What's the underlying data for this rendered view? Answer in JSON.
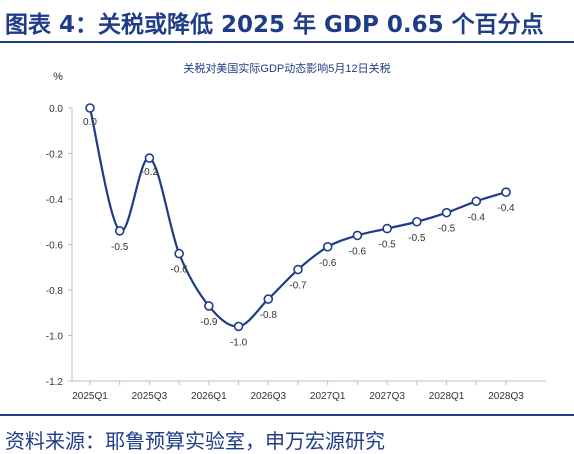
{
  "header": {
    "title": "图表 4：关税或降低 2025 年 GDP 0.65 个百分点"
  },
  "footer": {
    "source": "资料来源：耶鲁预算实验室，申万宏源研究"
  },
  "colors": {
    "brand": "#1f3c88",
    "line": "#1f3c88",
    "axis": "#bfbfbf"
  },
  "chart_data": {
    "type": "line",
    "title": "关税对美国实际GDP动态影响5月12日关税",
    "ylabel": "%",
    "xlabel": "",
    "ylim": [
      -1.2,
      0.0
    ],
    "yticks": [
      "0.0",
      "-0.2",
      "-0.4",
      "-0.6",
      "-0.8",
      "-1.0",
      "-1.2"
    ],
    "x": [
      "2025Q1",
      "2025Q2",
      "2025Q3",
      "2025Q4",
      "2026Q1",
      "2026Q2",
      "2026Q3",
      "2026Q4",
      "2027Q1",
      "2027Q2",
      "2027Q3",
      "2027Q4",
      "2028Q1",
      "2028Q2",
      "2028Q3"
    ],
    "xtick_labels": [
      "2025Q1",
      "",
      "2025Q3",
      "",
      "2026Q1",
      "",
      "2026Q3",
      "",
      "2027Q1",
      "",
      "2027Q3",
      "",
      "2028Q1",
      "",
      "2028Q3"
    ],
    "values": [
      0.0,
      -0.54,
      -0.22,
      -0.64,
      -0.87,
      -0.96,
      -0.84,
      -0.71,
      -0.61,
      -0.56,
      -0.53,
      -0.5,
      -0.46,
      -0.41,
      -0.37
    ],
    "data_labels": [
      "0.0",
      "-0.5",
      "-0.2",
      "-0.6",
      "-0.9",
      "-1.0",
      "-0.8",
      "-0.7",
      "-0.6",
      "-0.6",
      "-0.5",
      "-0.5",
      "-0.5",
      "-0.4",
      "-0.4"
    ],
    "grid": false,
    "legend": "none"
  }
}
